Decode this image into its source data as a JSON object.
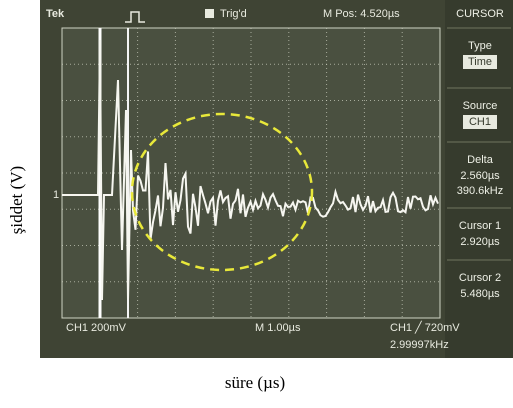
{
  "y_label": "şiddet (V)",
  "x_label": "süre (µs)",
  "screen": {
    "brand": "Tek",
    "trigger": "Trig'd",
    "position": "M Pos: 4.520µs",
    "ground_marker": "1",
    "channel": "CH1  200mV",
    "timebase": "M 1.00µs",
    "trigger_level": "CH1 ╱ 720mV",
    "frequency": "2.99997kHz"
  },
  "menu": {
    "title": "CURSOR",
    "items": [
      {
        "label": "Type",
        "value": "Time"
      },
      {
        "label": "Source",
        "value": "CH1"
      },
      {
        "label": "Delta",
        "value": "2.560µs",
        "value2": "390.6kHz"
      },
      {
        "label": "Cursor 1",
        "value": "2.920µs"
      },
      {
        "label": "Cursor 2",
        "value": "5.480µs"
      }
    ]
  }
}
